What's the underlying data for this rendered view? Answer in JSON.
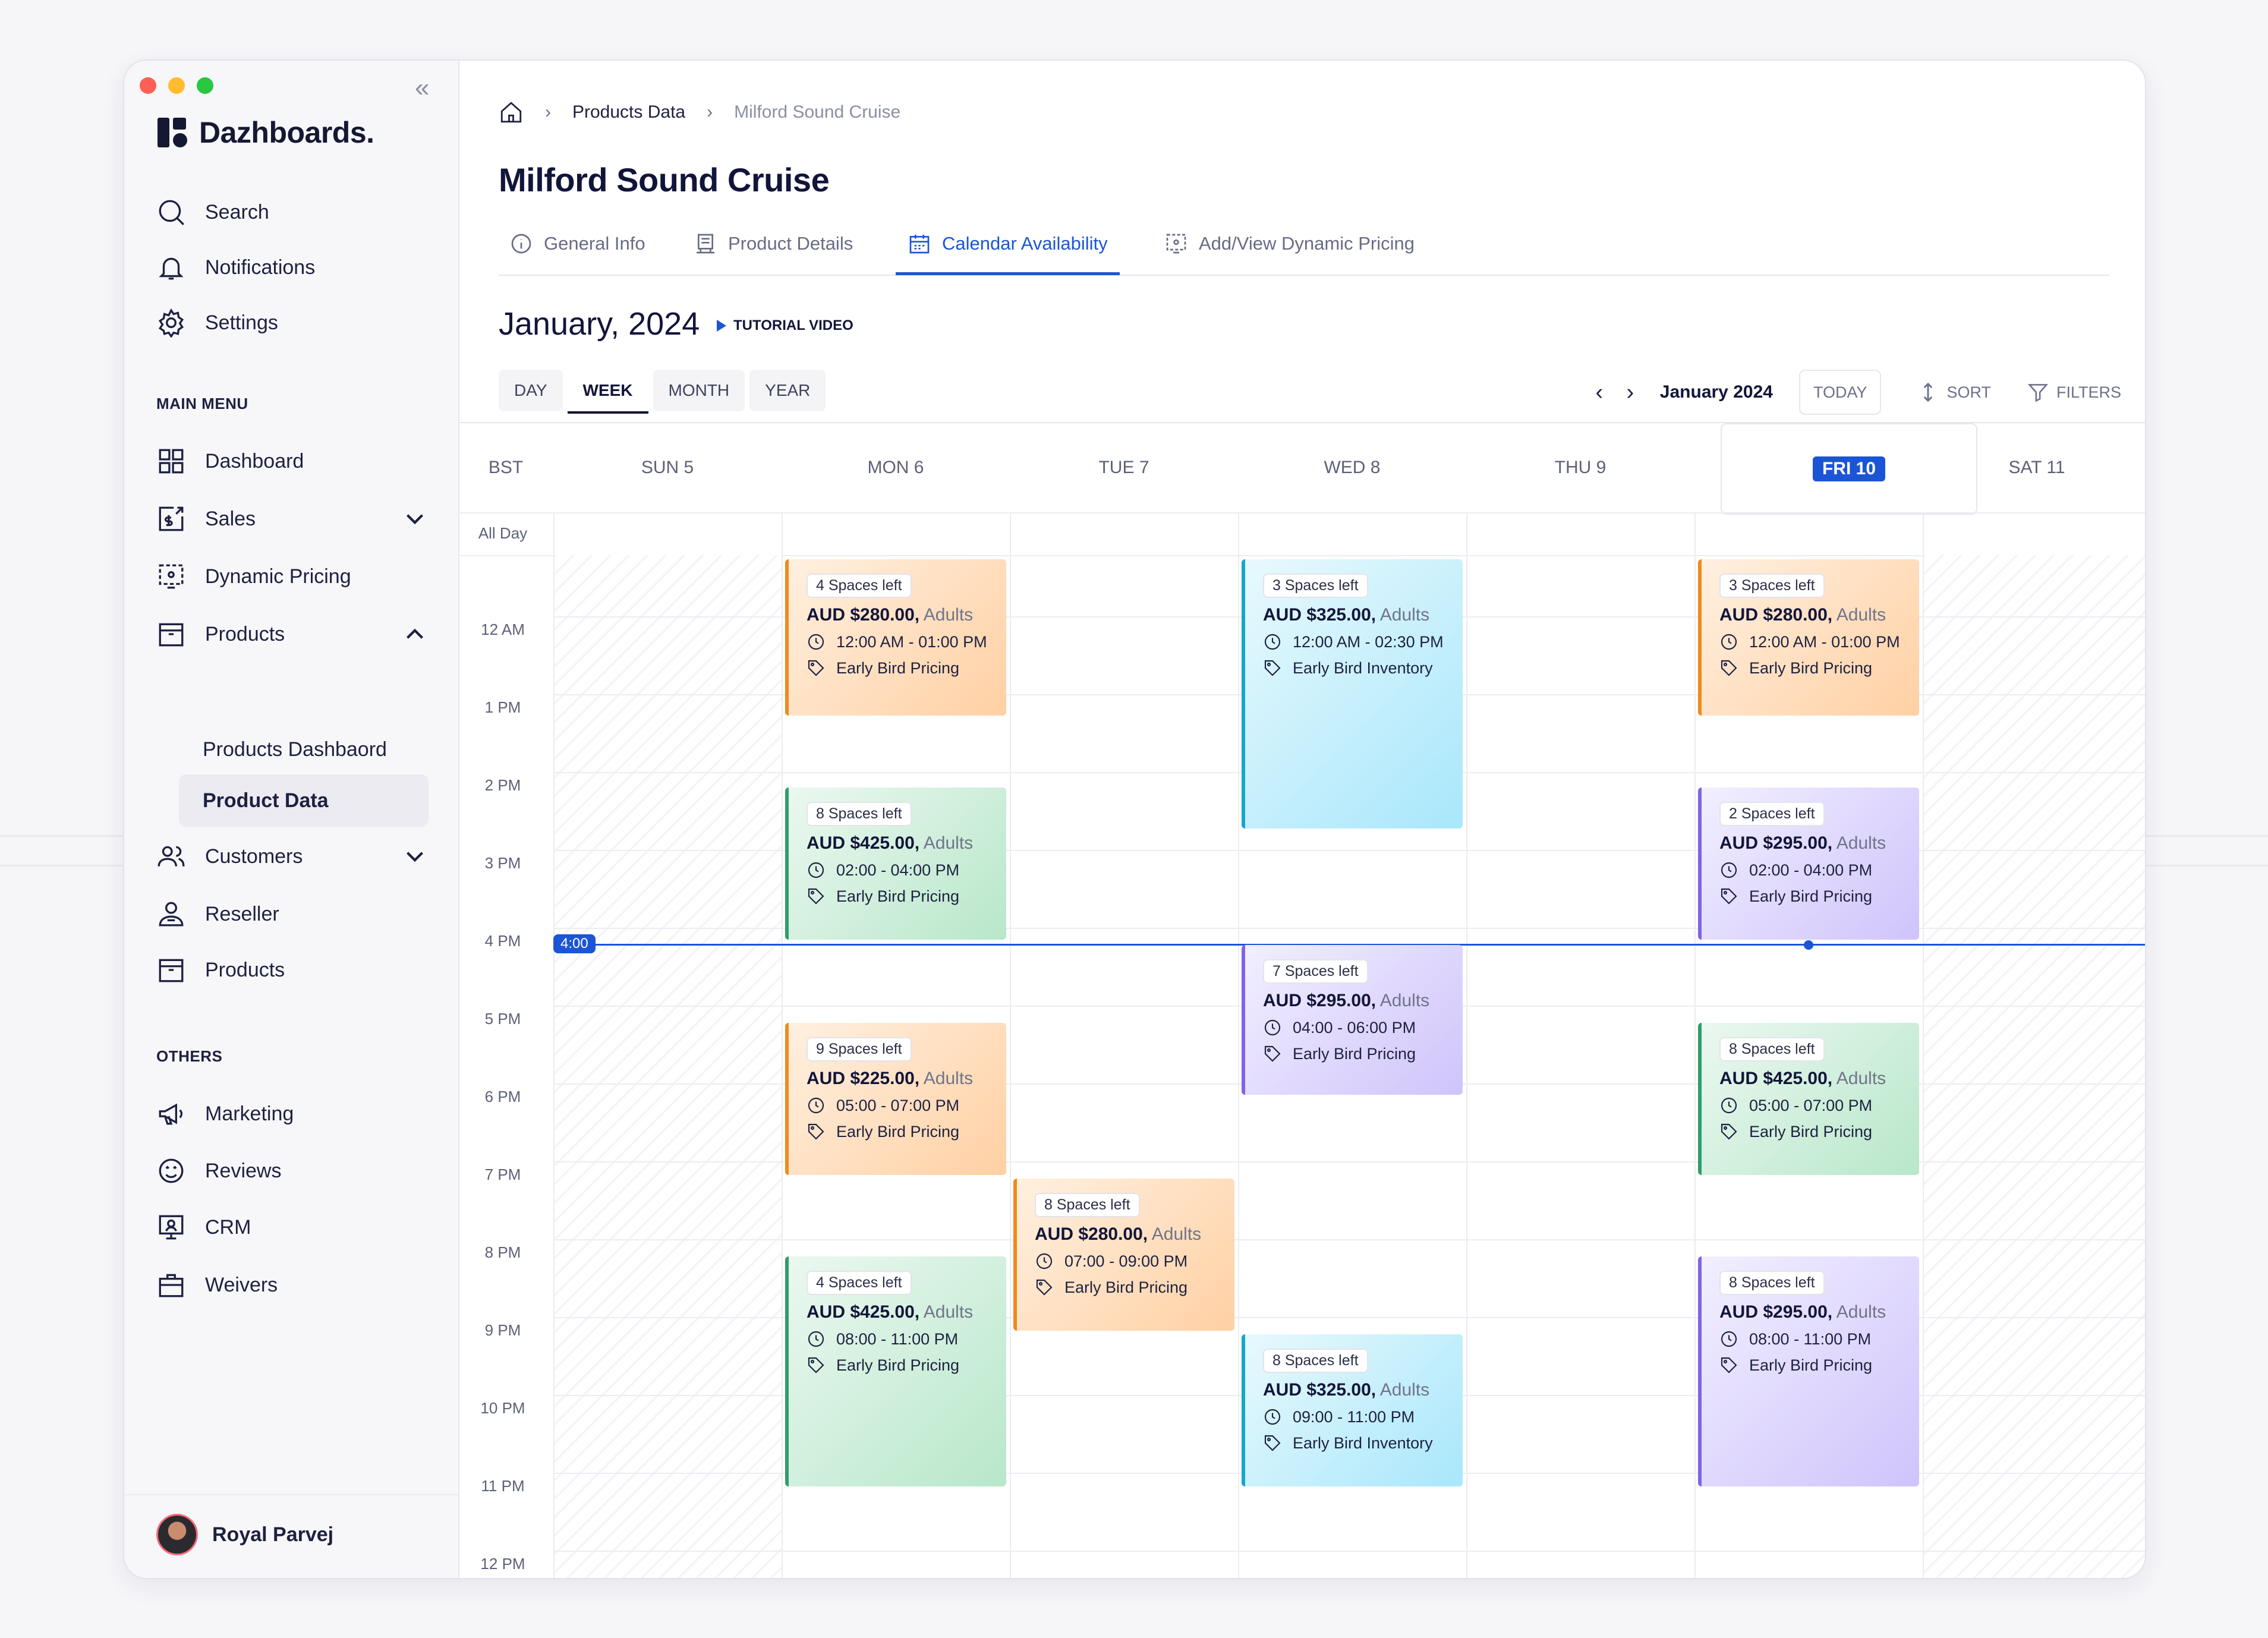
{
  "app": {
    "brand": "Dazhboards.",
    "window_controls": {
      "close": "#ff5f57",
      "minimize": "#febc2e",
      "maximize": "#28c840"
    }
  },
  "sidebar": {
    "top_items": [
      {
        "label": "Search",
        "icon": "search-icon"
      },
      {
        "label": "Notifications",
        "icon": "bell-icon"
      },
      {
        "label": "Settings",
        "icon": "gear-icon"
      }
    ],
    "main_menu_label": "MAIN MENU",
    "main_items": [
      {
        "label": "Dashboard",
        "icon": "grid-icon"
      },
      {
        "label": "Sales",
        "icon": "sales-icon",
        "expandable": true
      },
      {
        "label": "Dynamic Pricing",
        "icon": "pricing-icon"
      },
      {
        "label": "Products",
        "icon": "box-icon",
        "expanded": true
      },
      {
        "label": "Customers",
        "icon": "users-icon",
        "expandable": true
      },
      {
        "label": "Reseller",
        "icon": "reseller-icon"
      },
      {
        "label": "Products",
        "icon": "box-icon"
      }
    ],
    "products_sub": [
      "Products Dashbaord",
      "Product Data"
    ],
    "others_label": "OTHERS",
    "other_items": [
      {
        "label": "Marketing",
        "icon": "megaphone-icon"
      },
      {
        "label": "Reviews",
        "icon": "reviews-icon"
      },
      {
        "label": "CRM",
        "icon": "crm-icon"
      },
      {
        "label": "Weivers",
        "icon": "briefcase-icon"
      }
    ],
    "user": {
      "name": "Royal Parvej"
    }
  },
  "header": {
    "breadcrumb": [
      "Products Data",
      "Milford Sound Cruise"
    ],
    "title": "Milford Sound Cruise",
    "tabs": [
      {
        "label": "General Info",
        "icon": "info-icon"
      },
      {
        "label": "Product Details",
        "icon": "product-icon"
      },
      {
        "label": "Calendar Availability",
        "icon": "calendar-icon",
        "active": true
      },
      {
        "label": "Add/View Dynamic Pricing",
        "icon": "dynamic-pricing-icon"
      }
    ]
  },
  "calendar": {
    "month_title": "January, 2024",
    "tutorial_label": "TUTORIAL VIDEO",
    "views": [
      "DAY",
      "WEEK",
      "MONTH",
      "YEAR"
    ],
    "active_view": "WEEK",
    "nav_label": "January 2024",
    "today_label": "TODAY",
    "sort_label": "SORT",
    "filters_label": "FILTERS",
    "timezone": "BST",
    "days": [
      "SUN 5",
      "MON 6",
      "TUE 7",
      "WED 8",
      "THU 9",
      "FRI 10",
      "SAT 11"
    ],
    "today_day": "FRI 10",
    "all_day_label": "All Day",
    "hours": [
      "12 AM",
      "1 PM",
      "2 PM",
      "3 PM",
      "4 PM",
      "5 PM",
      "6 PM",
      "7 PM",
      "8 PM",
      "9 PM",
      "10 PM",
      "11 PM",
      "12 PM"
    ],
    "now_label": "4:00",
    "events": [
      {
        "day": 1,
        "color": "orange",
        "spaces": "4 Spaces left",
        "price": "AUD $280.00,",
        "audience": "Adults",
        "time": "12:00 AM - 01:00 PM",
        "tag": "Early Bird Pricing"
      },
      {
        "day": 3,
        "color": "cyan",
        "spaces": "3 Spaces left",
        "price": "AUD $325.00,",
        "audience": "Adults",
        "time": "12:00 AM - 02:30 PM",
        "tag": "Early Bird Inventory"
      },
      {
        "day": 5,
        "color": "orange",
        "spaces": "3 Spaces left",
        "price": "AUD $280.00,",
        "audience": "Adults",
        "time": "12:00 AM - 01:00 PM",
        "tag": "Early Bird Pricing"
      },
      {
        "day": 1,
        "color": "green",
        "spaces": "8 Spaces left",
        "price": "AUD $425.00,",
        "audience": "Adults",
        "time": "02:00 - 04:00 PM",
        "tag": "Early Bird Pricing"
      },
      {
        "day": 5,
        "color": "purple",
        "spaces": "2 Spaces left",
        "price": "AUD $295.00,",
        "audience": "Adults",
        "time": "02:00 - 04:00 PM",
        "tag": "Early Bird Pricing"
      },
      {
        "day": 3,
        "color": "purple",
        "spaces": "7 Spaces left",
        "price": "AUD $295.00,",
        "audience": "Adults",
        "time": "04:00 - 06:00 PM",
        "tag": "Early Bird Pricing"
      },
      {
        "day": 1,
        "color": "orange",
        "spaces": "9 Spaces left",
        "price": "AUD $225.00,",
        "audience": "Adults",
        "time": "05:00 - 07:00 PM",
        "tag": "Early Bird Pricing"
      },
      {
        "day": 5,
        "color": "green",
        "spaces": "8 Spaces left",
        "price": "AUD $425.00,",
        "audience": "Adults",
        "time": "05:00 - 07:00 PM",
        "tag": "Early Bird Pricing"
      },
      {
        "day": 2,
        "color": "orange",
        "spaces": "8 Spaces left",
        "price": "AUD $280.00,",
        "audience": "Adults",
        "time": "07:00 - 09:00 PM",
        "tag": "Early Bird Pricing"
      },
      {
        "day": 1,
        "color": "green",
        "spaces": "4 Spaces left",
        "price": "AUD $425.00,",
        "audience": "Adults",
        "time": "08:00 - 11:00 PM",
        "tag": "Early Bird Pricing"
      },
      {
        "day": 5,
        "color": "purple",
        "spaces": "8 Spaces left",
        "price": "AUD $295.00,",
        "audience": "Adults",
        "time": "08:00 - 11:00 PM",
        "tag": "Early Bird Pricing"
      },
      {
        "day": 3,
        "color": "cyan",
        "spaces": "8 Spaces left",
        "price": "AUD $325.00,",
        "audience": "Adults",
        "time": "09:00 - 11:00 PM",
        "tag": "Early Bird Inventory"
      }
    ]
  }
}
